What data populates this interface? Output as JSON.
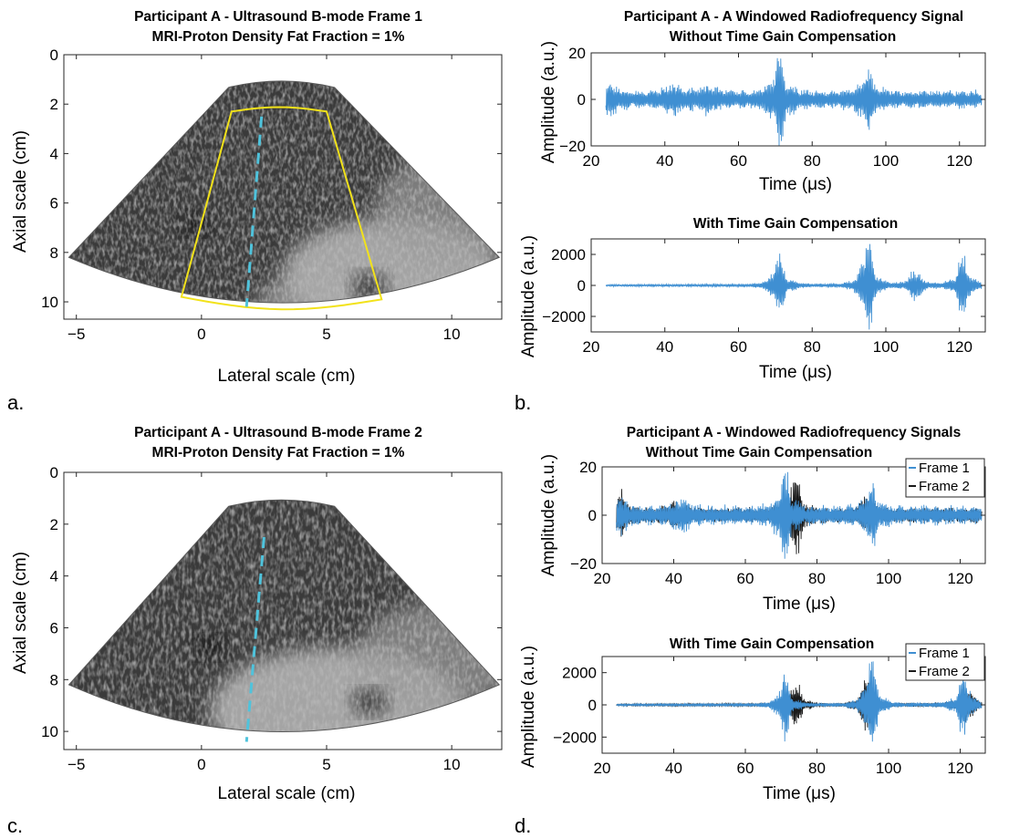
{
  "figure_labels": [
    "a.",
    "b.",
    "c.",
    "d."
  ],
  "colors": {
    "frame1": "#3f8fd2",
    "frame2": "#1a1a1a",
    "roi": "#f2e21a",
    "scanline": "#4fc3dc"
  },
  "panels": {
    "a": {
      "title": "Participant A - Ultrasound B-mode Frame 1",
      "subtitle": "MRI-Proton Density Fat Fraction = 1%",
      "xlabel": "Lateral scale (cm)",
      "ylabel": "Axial scale (cm)",
      "xticks": [
        "−5",
        "0",
        "5",
        "10"
      ],
      "yticks": [
        "0",
        "2",
        "4",
        "6",
        "8",
        "10"
      ]
    },
    "b_top": {
      "title": "Participant A - A Windowed Radiofrequency Signal",
      "subtitle": "Without Time Gain Compensation",
      "xlabel": "Time (μs)",
      "ylabel": "Amplitude (a.u.)",
      "xticks": [
        "20",
        "40",
        "60",
        "80",
        "100",
        "120"
      ],
      "yticks": [
        "20",
        "0",
        "−20"
      ]
    },
    "b_bottom": {
      "title": "With Time Gain Compensation",
      "xlabel": "Time (μs)",
      "ylabel": "Amplitude (a.u.)",
      "xticks": [
        "20",
        "40",
        "60",
        "80",
        "100",
        "120"
      ],
      "yticks": [
        "2000",
        "0",
        "−2000"
      ]
    },
    "c": {
      "title": "Participant A - Ultrasound B-mode Frame 2",
      "subtitle": "MRI-Proton Density Fat Fraction = 1%",
      "xlabel": "Lateral scale (cm)",
      "ylabel": "Axial scale (cm)",
      "xticks": [
        "−5",
        "0",
        "5",
        "10"
      ],
      "yticks": [
        "0",
        "2",
        "4",
        "6",
        "8",
        "10"
      ]
    },
    "d_top": {
      "title": "Participant A - Windowed Radiofrequency Signals",
      "subtitle": "Without Time Gain Compensation",
      "xlabel": "Time (μs)",
      "ylabel": "Amplitude (a.u.)",
      "xticks": [
        "20",
        "40",
        "60",
        "80",
        "100",
        "120"
      ],
      "yticks": [
        "20",
        "0",
        "−20"
      ],
      "legend": [
        "Frame 1",
        "Frame 2"
      ]
    },
    "d_bottom": {
      "title": "With Time Gain Compensation",
      "xlabel": "Time (μs)",
      "ylabel": "Amplitude (a.u.)",
      "xticks": [
        "20",
        "40",
        "60",
        "80",
        "100",
        "120"
      ],
      "yticks": [
        "2000",
        "0",
        "−2000"
      ],
      "legend": [
        "Frame 1",
        "Frame 2"
      ]
    }
  },
  "chart_data": [
    {
      "type": "heatmap",
      "title": "Participant A - Ultrasound B-mode Frame 1",
      "subtitle": "MRI-Proton Density Fat Fraction = 1%",
      "xlabel": "Lateral scale (cm)",
      "ylabel": "Axial scale (cm)",
      "xlim": [
        -5.5,
        12
      ],
      "ylim": [
        10.7,
        0
      ],
      "y_reversed": true,
      "xticks": [
        -5,
        0,
        5,
        10
      ],
      "yticks": [
        0,
        2,
        4,
        6,
        8,
        10
      ],
      "sector": {
        "apex_x": 3.2,
        "inner_depth": 1.1,
        "outer_depth": 10.7,
        "left_edge_x_at_depth_8.2": -5.3,
        "right_edge_x_at_depth_8.2": 11.9
      },
      "roi_polygon": [
        [
          1.2,
          2.3
        ],
        [
          5.0,
          2.3
        ],
        [
          7.2,
          9.9
        ],
        [
          -0.8,
          9.8
        ]
      ],
      "scanline": [
        [
          2.4,
          2.5
        ],
        [
          1.8,
          10.2
        ]
      ],
      "grid": false
    },
    {
      "type": "line",
      "title": "Participant A - A Windowed Radiofrequency Signal",
      "subtitle": "Without Time Gain Compensation",
      "xlabel": "Time (μs)",
      "ylabel": "Amplitude (a.u.)",
      "xlim": [
        20,
        127
      ],
      "ylim": [
        -20,
        20
      ],
      "xticks": [
        20,
        40,
        60,
        80,
        100,
        120
      ],
      "yticks": [
        -20,
        0,
        20
      ],
      "series": [
        {
          "color": "#3f8fd2",
          "x_range": [
            24,
            126
          ],
          "baseline_amplitude": 4.5,
          "bursts": [
            {
              "t": 71,
              "amp": 19
            },
            {
              "t": 95,
              "amp": 14
            },
            {
              "t": 24.5,
              "amp": 9
            },
            {
              "t": 42,
              "amp": 8
            },
            {
              "t": 52,
              "amp": 7
            }
          ]
        }
      ],
      "grid": false
    },
    {
      "type": "line",
      "title": "With Time Gain Compensation",
      "xlabel": "Time (μs)",
      "ylabel": "Amplitude (a.u.)",
      "xlim": [
        20,
        127
      ],
      "ylim": [
        -3000,
        3000
      ],
      "xticks": [
        20,
        40,
        60,
        80,
        100,
        120
      ],
      "yticks": [
        -2000,
        0,
        2000
      ],
      "series": [
        {
          "color": "#3f8fd2",
          "x_range": [
            24,
            126
          ],
          "baseline_amplitude": 120,
          "growth": "increasing with time",
          "bursts": [
            {
              "t": 71,
              "amp": 1900
            },
            {
              "t": 95,
              "amp": 2700
            },
            {
              "t": 121,
              "amp": 1800
            },
            {
              "t": 108,
              "amp": 1000
            }
          ]
        }
      ],
      "grid": false
    },
    {
      "type": "heatmap",
      "title": "Participant A - Ultrasound B-mode Frame 2",
      "subtitle": "MRI-Proton Density Fat Fraction = 1%",
      "xlabel": "Lateral scale (cm)",
      "ylabel": "Axial scale (cm)",
      "xlim": [
        -5.5,
        12
      ],
      "ylim": [
        10.7,
        0
      ],
      "y_reversed": true,
      "xticks": [
        -5,
        0,
        5,
        10
      ],
      "yticks": [
        0,
        2,
        4,
        6,
        8,
        10
      ],
      "scanline": [
        [
          2.5,
          2.5
        ],
        [
          1.8,
          10.4
        ]
      ],
      "grid": false
    },
    {
      "type": "line",
      "title": "Participant A - Windowed Radiofrequency Signals",
      "subtitle": "Without Time Gain Compensation",
      "xlabel": "Time (μs)",
      "ylabel": "Amplitude (a.u.)",
      "xlim": [
        20,
        127
      ],
      "ylim": [
        -20,
        20
      ],
      "xticks": [
        20,
        40,
        60,
        80,
        100,
        120
      ],
      "yticks": [
        -20,
        0,
        20
      ],
      "legend_position": "top-right",
      "series": [
        {
          "name": "Frame 1",
          "color": "#3f8fd2",
          "x_range": [
            24,
            126
          ],
          "baseline_amplitude": 4.5,
          "bursts": [
            {
              "t": 71,
              "amp": 19
            },
            {
              "t": 95,
              "amp": 14
            },
            {
              "t": 24.5,
              "amp": 10
            },
            {
              "t": 42,
              "amp": 8
            }
          ]
        },
        {
          "name": "Frame 2",
          "color": "#1a1a1a",
          "x_range": [
            24,
            126
          ],
          "baseline_amplitude": 3.5,
          "bursts": [
            {
              "t": 74,
              "amp": 17
            },
            {
              "t": 94,
              "amp": 8
            },
            {
              "t": 25,
              "amp": 10
            },
            {
              "t": 40,
              "amp": 5
            }
          ]
        }
      ],
      "grid": false
    },
    {
      "type": "line",
      "title": "With Time Gain Compensation",
      "xlabel": "Time (μs)",
      "ylabel": "Amplitude (a.u.)",
      "xlim": [
        20,
        127
      ],
      "ylim": [
        -3000,
        3000
      ],
      "xticks": [
        20,
        40,
        60,
        80,
        100,
        120
      ],
      "yticks": [
        -2000,
        0,
        2000
      ],
      "legend_position": "top-right",
      "series": [
        {
          "name": "Frame 1",
          "color": "#3f8fd2",
          "x_range": [
            24,
            126
          ],
          "baseline_amplitude": 120,
          "growth": "increasing with time",
          "bursts": [
            {
              "t": 71,
              "amp": 1800
            },
            {
              "t": 95,
              "amp": 2800
            },
            {
              "t": 121,
              "amp": 1900
            }
          ]
        },
        {
          "name": "Frame 2",
          "color": "#1a1a1a",
          "x_range": [
            24,
            126
          ],
          "baseline_amplitude": 110,
          "growth": "increasing with time",
          "bursts": [
            {
              "t": 74,
              "amp": 1400
            },
            {
              "t": 94,
              "amp": 1800
            },
            {
              "t": 122,
              "amp": 1200
            }
          ]
        }
      ],
      "grid": false
    }
  ]
}
